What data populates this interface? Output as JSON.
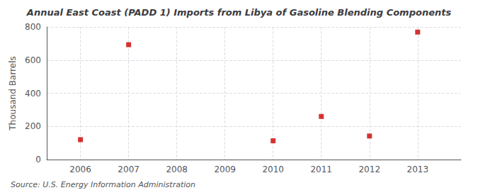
{
  "chart_data": {
    "type": "scatter",
    "title": "Annual East Coast (PADD 1) Imports from Libya of Gasoline Blending Components",
    "ylabel": "Thousand Barrels",
    "source": "Source: U.S. Energy Information Administration",
    "x": [
      2006,
      2007,
      2010,
      2011,
      2012,
      2013
    ],
    "values": [
      120,
      693,
      113,
      260,
      142,
      769
    ],
    "color": "#cc0000",
    "marker": "square",
    "xlim": [
      2005.3,
      2013.9
    ],
    "ylim": [
      0,
      800
    ],
    "xticks": [
      2006,
      2007,
      2008,
      2009,
      2010,
      2011,
      2012,
      2013
    ],
    "yticks": [
      0,
      200,
      400,
      600,
      800
    ],
    "grid": true
  }
}
